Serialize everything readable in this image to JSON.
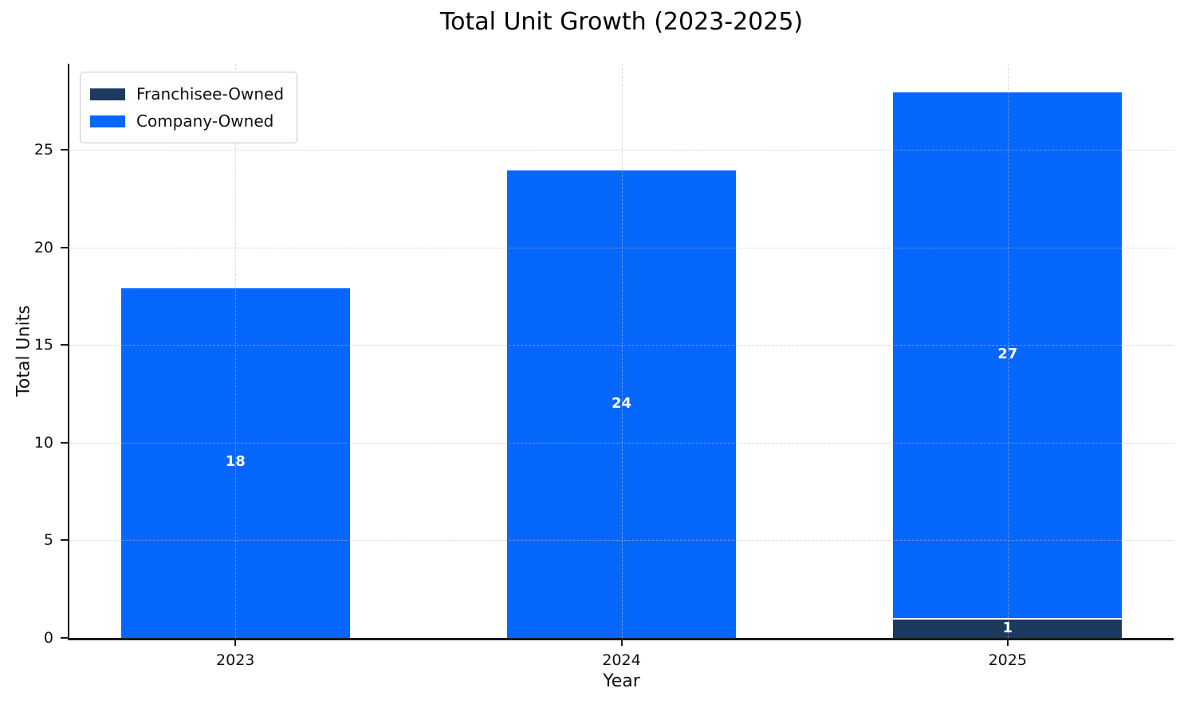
{
  "chart_data": {
    "type": "bar",
    "stacked": true,
    "title": "Total Unit Growth (2023-2025)",
    "xlabel": "Year",
    "ylabel": "Total Units",
    "categories": [
      "2023",
      "2024",
      "2025"
    ],
    "series": [
      {
        "name": "Franchisee-Owned",
        "color": "#1b3a5e",
        "values": [
          0,
          0,
          1
        ]
      },
      {
        "name": "Company-Owned",
        "color": "#0667fc",
        "values": [
          18,
          24,
          27
        ]
      }
    ],
    "yticks": [
      0,
      5,
      10,
      15,
      20,
      25
    ],
    "ylim": [
      0,
      29.4
    ],
    "xlim": [
      -0.43,
      2.43
    ],
    "bar_width": 0.6,
    "grid": true,
    "gridline_style": "dashed",
    "legend_position": "upper-left",
    "value_label_color": "#ffffff",
    "background_color": "#ffffff"
  }
}
